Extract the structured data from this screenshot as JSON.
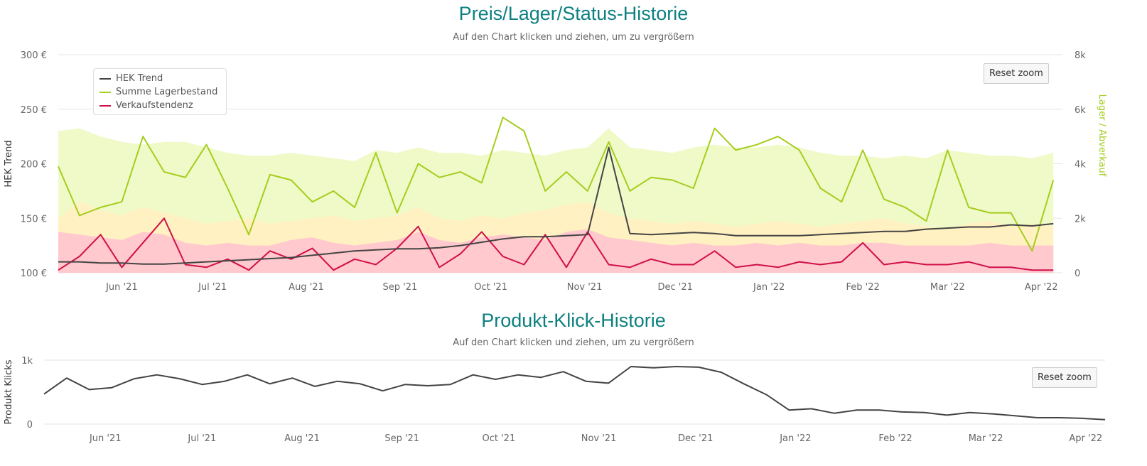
{
  "colors": {
    "title": "#0e8080",
    "hek": "#444444",
    "lager": "#a5cd1e",
    "verkauf": "#d0104a",
    "area_green": "#effac8",
    "area_yellow": "#fff1c2",
    "area_pink": "#ffc9cd",
    "clicks": "#444444",
    "right_axis": "#a5cd1e"
  },
  "chart_data": [
    {
      "type": "line",
      "title": "Preis/Lager/Status-Historie",
      "subtitle": "Auf den Chart klicken und ziehen, um zu vergrößern",
      "reset_label": "Reset zoom",
      "ylabel": "HEK Trend",
      "ylabel_right": "Lager / Abverkauf",
      "xlim": [
        "2021-05-11",
        "2022-04-08"
      ],
      "ylim": [
        100,
        300
      ],
      "ylim_right": [
        0,
        8000
      ],
      "grid": true,
      "legend_position": "top-left",
      "y_ticks": [
        "100 €",
        "150 €",
        "200 €",
        "250 €",
        "300 €"
      ],
      "y_tick_values": [
        100,
        150,
        200,
        250,
        300
      ],
      "y_right_ticks": [
        "0",
        "2k",
        "4k",
        "6k",
        "8k"
      ],
      "y_right_tick_values": [
        0,
        2000,
        4000,
        6000,
        8000
      ],
      "x_ticks": [
        {
          "date": "2021-06-01",
          "label": "Jun '21"
        },
        {
          "date": "2021-07-01",
          "label": "Jul '21"
        },
        {
          "date": "2021-08-01",
          "label": "Aug '21"
        },
        {
          "date": "2021-09-01",
          "label": "Sep '21"
        },
        {
          "date": "2021-10-01",
          "label": "Oct '21"
        },
        {
          "date": "2021-11-01",
          "label": "Nov '21"
        },
        {
          "date": "2021-12-01",
          "label": "Dec '21"
        },
        {
          "date": "2022-01-01",
          "label": "Jan '22"
        },
        {
          "date": "2022-02-01",
          "label": "Feb '22"
        },
        {
          "date": "2022-03-01",
          "label": "Mar '22"
        },
        {
          "date": "2022-04-01",
          "label": "Apr '22"
        }
      ],
      "x": [
        "2021-05-11",
        "2021-05-18",
        "2021-05-25",
        "2021-06-01",
        "2021-06-08",
        "2021-06-15",
        "2021-06-22",
        "2021-06-29",
        "2021-07-06",
        "2021-07-13",
        "2021-07-20",
        "2021-07-27",
        "2021-08-03",
        "2021-08-10",
        "2021-08-17",
        "2021-08-24",
        "2021-08-31",
        "2021-09-07",
        "2021-09-14",
        "2021-09-21",
        "2021-09-28",
        "2021-10-05",
        "2021-10-12",
        "2021-10-19",
        "2021-10-26",
        "2021-11-02",
        "2021-11-09",
        "2021-11-16",
        "2021-11-23",
        "2021-11-30",
        "2021-12-07",
        "2021-12-14",
        "2021-12-21",
        "2021-12-28",
        "2022-01-04",
        "2022-01-11",
        "2022-01-18",
        "2022-01-25",
        "2022-02-01",
        "2022-02-08",
        "2022-02-15",
        "2022-02-22",
        "2022-03-01",
        "2022-03-08",
        "2022-03-15",
        "2022-03-22",
        "2022-03-29",
        "2022-04-05"
      ],
      "areas": [
        {
          "axis": "right",
          "color_key": "area_green",
          "values": [
            5200,
            5300,
            5000,
            4800,
            4700,
            4800,
            4800,
            4600,
            4400,
            4300,
            4300,
            4400,
            4300,
            4200,
            4100,
            4500,
            4400,
            4600,
            4400,
            4400,
            4300,
            4500,
            4400,
            4300,
            4500,
            4600,
            5300,
            4600,
            4500,
            4400,
            4600,
            4700,
            4600,
            4600,
            4700,
            4600,
            4400,
            4300,
            4300,
            4200,
            4300,
            4200,
            4500,
            4400,
            4300,
            4300,
            4200,
            4400
          ]
        },
        {
          "axis": "right",
          "color_key": "area_yellow",
          "values": [
            2000,
            2600,
            2300,
            2100,
            2400,
            2200,
            2000,
            1800,
            1900,
            2000,
            1800,
            1900,
            2000,
            2100,
            1900,
            2000,
            2100,
            2400,
            2000,
            1900,
            2100,
            2000,
            2200,
            2300,
            2500,
            2600,
            2200,
            2000,
            1900,
            1800,
            1900,
            1800,
            1700,
            1800,
            1900,
            1800,
            1700,
            1800,
            1900,
            2000,
            1800,
            1700,
            1600,
            1800,
            1900,
            1700,
            1800,
            1700
          ]
        },
        {
          "axis": "right",
          "color_key": "area_pink",
          "values": [
            1500,
            1400,
            1300,
            1200,
            1500,
            1400,
            1100,
            1000,
            1100,
            1000,
            1000,
            1200,
            1300,
            1100,
            1000,
            1100,
            1200,
            1500,
            1200,
            1100,
            1300,
            1400,
            1300,
            1200,
            1500,
            1600,
            1300,
            1200,
            1100,
            1000,
            1100,
            1000,
            1000,
            1100,
            1000,
            1100,
            1000,
            1000,
            1100,
            1100,
            1000,
            1000,
            1000,
            1000,
            1100,
            1000,
            1000,
            1000
          ]
        }
      ],
      "series": [
        {
          "name": "HEK Trend",
          "axis": "left",
          "color_key": "hek",
          "values": [
            110,
            110,
            109,
            109,
            108,
            108,
            109,
            110,
            111,
            112,
            113,
            114,
            116,
            118,
            120,
            121,
            122,
            122,
            123,
            125,
            128,
            131,
            133,
            133,
            134,
            135,
            215,
            136,
            135,
            136,
            137,
            136,
            134,
            134,
            134,
            134,
            135,
            136,
            137,
            138,
            138,
            140,
            141,
            142,
            142,
            144,
            143,
            145
          ]
        },
        {
          "name": "Summe Lagerbestand",
          "axis": "right",
          "color_key": "lager",
          "values": [
            3900,
            2100,
            2400,
            2600,
            5000,
            3700,
            3500,
            4700,
            3100,
            1400,
            3600,
            3400,
            2600,
            3000,
            2400,
            4400,
            2200,
            4000,
            3500,
            3700,
            3300,
            5700,
            5200,
            3000,
            3700,
            3000,
            4800,
            3000,
            3500,
            3400,
            3100,
            5300,
            4500,
            4700,
            5000,
            4500,
            3100,
            2600,
            4500,
            2700,
            2400,
            1900,
            4500,
            2400,
            2200,
            2200,
            800,
            3400
          ]
        },
        {
          "name": "Verkaufstendenz",
          "axis": "right",
          "color_key": "verkauf",
          "values": [
            100,
            600,
            1400,
            200,
            1100,
            2000,
            300,
            200,
            500,
            100,
            800,
            500,
            900,
            100,
            500,
            300,
            900,
            1700,
            200,
            700,
            1500,
            600,
            300,
            1400,
            200,
            1500,
            300,
            200,
            500,
            300,
            300,
            800,
            200,
            300,
            200,
            400,
            300,
            400,
            1100,
            300,
            400,
            300,
            300,
            400,
            200,
            200,
            100,
            100
          ]
        }
      ]
    },
    {
      "type": "line",
      "title": "Produkt-Klick-Historie",
      "subtitle": "Auf den Chart klicken und ziehen, um zu vergrößern",
      "reset_label": "Reset zoom",
      "ylabel": "Produkt Klicks",
      "xlim": [
        "2021-05-13",
        "2022-04-07"
      ],
      "ylim": [
        0,
        1000
      ],
      "grid": true,
      "y_ticks": [
        "0",
        "1k"
      ],
      "y_tick_values": [
        0,
        1000
      ],
      "x_ticks": [
        {
          "date": "2021-06-01",
          "label": "Jun '21"
        },
        {
          "date": "2021-07-01",
          "label": "Jul '21"
        },
        {
          "date": "2021-08-01",
          "label": "Aug '21"
        },
        {
          "date": "2021-09-01",
          "label": "Sep '21"
        },
        {
          "date": "2021-10-01",
          "label": "Oct '21"
        },
        {
          "date": "2021-11-01",
          "label": "Nov '21"
        },
        {
          "date": "2021-12-01",
          "label": "Dec '21"
        },
        {
          "date": "2022-01-01",
          "label": "Jan '22"
        },
        {
          "date": "2022-02-01",
          "label": "Feb '22"
        },
        {
          "date": "2022-03-01",
          "label": "Mar '22"
        },
        {
          "date": "2022-04-01",
          "label": "Apr '22"
        }
      ],
      "x": [
        "2021-05-13",
        "2021-05-20",
        "2021-05-27",
        "2021-06-03",
        "2021-06-10",
        "2021-06-17",
        "2021-06-24",
        "2021-07-01",
        "2021-07-08",
        "2021-07-15",
        "2021-07-22",
        "2021-07-29",
        "2021-08-05",
        "2021-08-12",
        "2021-08-19",
        "2021-08-26",
        "2021-09-02",
        "2021-09-09",
        "2021-09-16",
        "2021-09-23",
        "2021-09-30",
        "2021-10-07",
        "2021-10-14",
        "2021-10-21",
        "2021-10-28",
        "2021-11-04",
        "2021-11-11",
        "2021-11-18",
        "2021-11-25",
        "2021-12-02",
        "2021-12-09",
        "2021-12-16",
        "2021-12-23",
        "2021-12-30",
        "2022-01-06",
        "2022-01-13",
        "2022-01-20",
        "2022-01-27",
        "2022-02-03",
        "2022-02-10",
        "2022-02-17",
        "2022-02-24",
        "2022-03-03",
        "2022-03-10",
        "2022-03-17",
        "2022-03-24",
        "2022-03-31",
        "2022-04-07"
      ],
      "series": [
        {
          "color_key": "clicks",
          "values": [
            470,
            720,
            540,
            570,
            710,
            770,
            710,
            620,
            670,
            770,
            630,
            720,
            590,
            670,
            630,
            520,
            620,
            600,
            620,
            770,
            700,
            770,
            730,
            820,
            670,
            640,
            900,
            880,
            900,
            890,
            810,
            630,
            460,
            220,
            240,
            170,
            220,
            220,
            190,
            180,
            140,
            180,
            160,
            130,
            100,
            100,
            90,
            70
          ]
        }
      ]
    }
  ]
}
